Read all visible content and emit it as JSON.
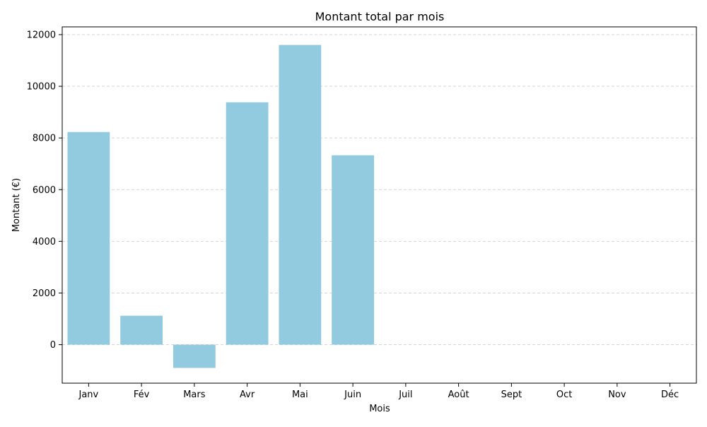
{
  "chart_data": {
    "type": "bar",
    "title": "Montant total par mois",
    "xlabel": "Mois",
    "ylabel": "Montant (€)",
    "categories": [
      "Janv",
      "Fév",
      "Mars",
      "Avr",
      "Mai",
      "Juin",
      "Juil",
      "Août",
      "Sept",
      "Oct",
      "Nov",
      "Déc"
    ],
    "values": [
      8230,
      1120,
      -900,
      9380,
      11600,
      7330,
      null,
      null,
      null,
      null,
      null,
      null
    ],
    "ylim": [
      -1490,
      12300
    ],
    "yticks": [
      0,
      2000,
      4000,
      6000,
      8000,
      10000,
      12000
    ],
    "ytick_labels": [
      "0",
      "2000",
      "4000",
      "6000",
      "8000",
      "10000",
      "12000"
    ],
    "grid": "horizontal-dashed",
    "bar_color": "#92cadf",
    "grid_color": "#d5d5d5"
  }
}
